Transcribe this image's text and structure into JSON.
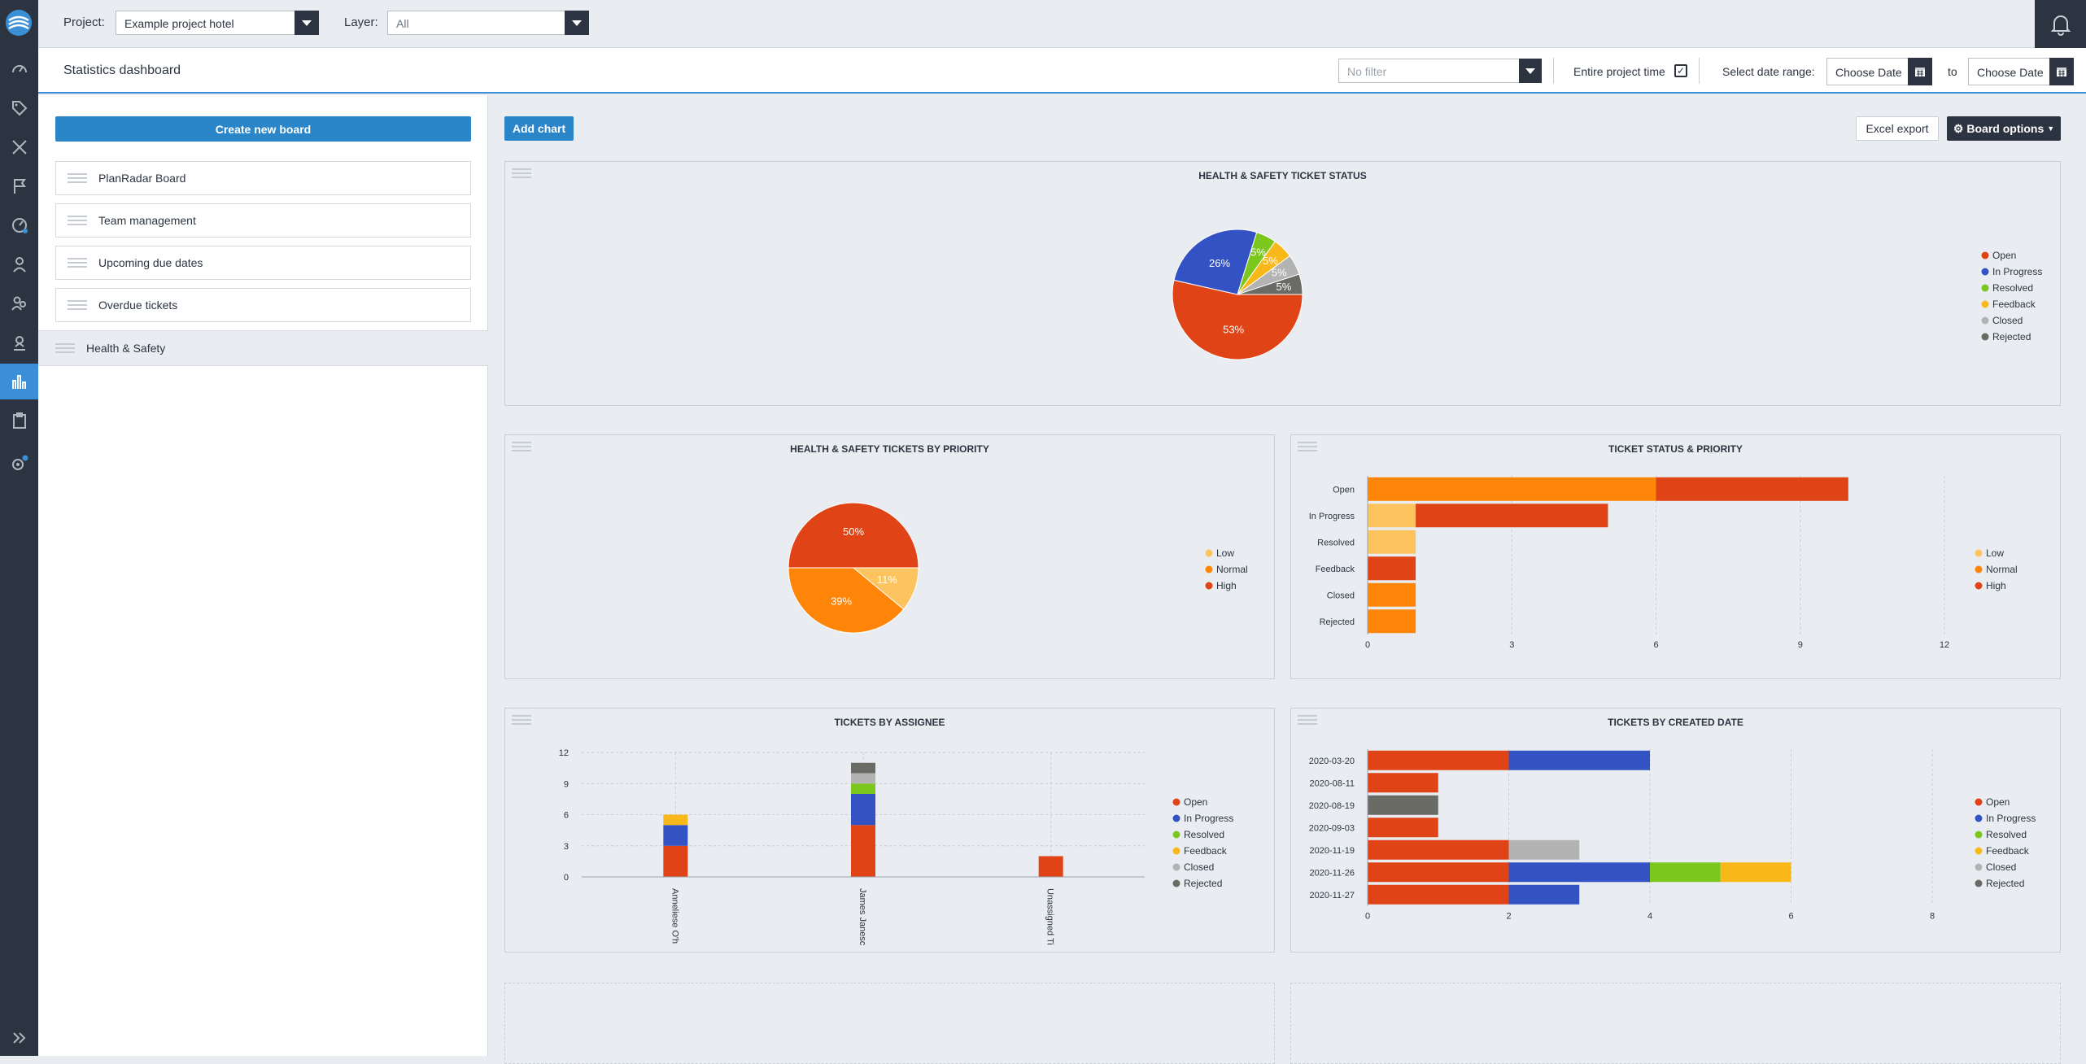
{
  "topbar": {
    "project_label": "Project:",
    "project_value": "Example project hotel",
    "layer_label": "Layer:",
    "layer_value": "All"
  },
  "titlebar": {
    "title": "Statistics dashboard",
    "filter_placeholder": "No filter",
    "entire_project_time": "Entire project time",
    "entire_project_time_checked": true,
    "select_date_range": "Select date range:",
    "date_from": "Choose Date",
    "to": "to",
    "date_to": "Choose Date"
  },
  "sidebar": {
    "create_button": "Create new board",
    "boards": [
      {
        "label": "PlanRadar Board"
      },
      {
        "label": "Team management"
      },
      {
        "label": "Upcoming due dates"
      },
      {
        "label": "Overdue tickets"
      },
      {
        "label": "Health & Safety",
        "selected": true
      }
    ]
  },
  "toolbar": {
    "add_chart": "Add chart",
    "excel_export": "Excel export",
    "board_options": "Board options"
  },
  "colors": {
    "Open": "#e04416",
    "In Progress": "#3352c4",
    "Resolved": "#7bc71d",
    "Feedback": "#f9b81a",
    "Closed": "#b3b3b3",
    "Rejected": "#6b6b66",
    "Low": "#fcc35e",
    "Normal": "#ff8508",
    "High": "#e04416"
  },
  "chart_data": [
    {
      "type": "pie",
      "title": "HEALTH & SAFETY TICKET STATUS",
      "labels": [
        "Open",
        "In Progress",
        "Resolved",
        "Feedback",
        "Closed",
        "Rejected"
      ],
      "values": [
        53,
        26,
        5,
        5,
        5,
        5
      ],
      "slice_labels": [
        "53%",
        "26%",
        "5%",
        "5%",
        "5%",
        "5%"
      ],
      "legend": "right"
    },
    {
      "type": "pie",
      "title": "HEALTH & SAFETY TICKETS BY PRIORITY",
      "labels": [
        "Low",
        "Normal",
        "High"
      ],
      "values": [
        11,
        39,
        50
      ],
      "slice_labels": [
        "11%",
        "39%",
        "50%"
      ],
      "legend": "right"
    },
    {
      "type": "bar",
      "orientation": "horizontal",
      "stacked": true,
      "title": "TICKET STATUS & PRIORITY",
      "categories": [
        "Open",
        "In Progress",
        "Resolved",
        "Feedback",
        "Closed",
        "Rejected"
      ],
      "series": [
        {
          "name": "Low",
          "values": [
            0,
            1,
            1,
            0,
            0,
            0
          ]
        },
        {
          "name": "Normal",
          "values": [
            6,
            0,
            0,
            0,
            1,
            1
          ]
        },
        {
          "name": "High",
          "values": [
            4,
            4,
            0,
            1,
            0,
            0
          ]
        }
      ],
      "xlim": [
        0,
        12
      ],
      "xticks": [
        0,
        3,
        6,
        9,
        12
      ],
      "grid": true,
      "legend": "right"
    },
    {
      "type": "bar",
      "orientation": "vertical",
      "stacked": true,
      "title": "TICKETS BY ASSIGNEE",
      "categories": [
        "Anneliese O'h",
        "James Janesc",
        "Unassigned Ti"
      ],
      "series": [
        {
          "name": "Open",
          "values": [
            3,
            5,
            2
          ]
        },
        {
          "name": "In Progress",
          "values": [
            2,
            3,
            0
          ]
        },
        {
          "name": "Resolved",
          "values": [
            0,
            1,
            0
          ]
        },
        {
          "name": "Feedback",
          "values": [
            1,
            0,
            0
          ]
        },
        {
          "name": "Closed",
          "values": [
            0,
            1,
            0
          ]
        },
        {
          "name": "Rejected",
          "values": [
            0,
            1,
            0
          ]
        }
      ],
      "ylim": [
        0,
        12
      ],
      "yticks": [
        0,
        3,
        6,
        9,
        12
      ],
      "grid": true,
      "legend": "right"
    },
    {
      "type": "bar",
      "orientation": "horizontal",
      "stacked": true,
      "title": "TICKETS BY CREATED DATE",
      "categories": [
        "2020-03-20",
        "2020-08-11",
        "2020-08-19",
        "2020-09-03",
        "2020-11-19",
        "2020-11-26",
        "2020-11-27"
      ],
      "series": [
        {
          "name": "Open",
          "values": [
            2,
            1,
            0,
            1,
            2,
            2,
            2
          ]
        },
        {
          "name": "In Progress",
          "values": [
            2,
            0,
            0,
            0,
            0,
            2,
            1
          ]
        },
        {
          "name": "Resolved",
          "values": [
            0,
            0,
            0,
            0,
            0,
            1,
            0
          ]
        },
        {
          "name": "Feedback",
          "values": [
            0,
            0,
            0,
            0,
            0,
            1,
            0
          ]
        },
        {
          "name": "Closed",
          "values": [
            0,
            0,
            0,
            0,
            1,
            0,
            0
          ]
        },
        {
          "name": "Rejected",
          "values": [
            0,
            0,
            1,
            0,
            0,
            0,
            0
          ]
        }
      ],
      "xlim": [
        0,
        8
      ],
      "xticks": [
        0,
        2,
        4,
        6,
        8
      ],
      "grid": true,
      "legend": "right"
    }
  ]
}
